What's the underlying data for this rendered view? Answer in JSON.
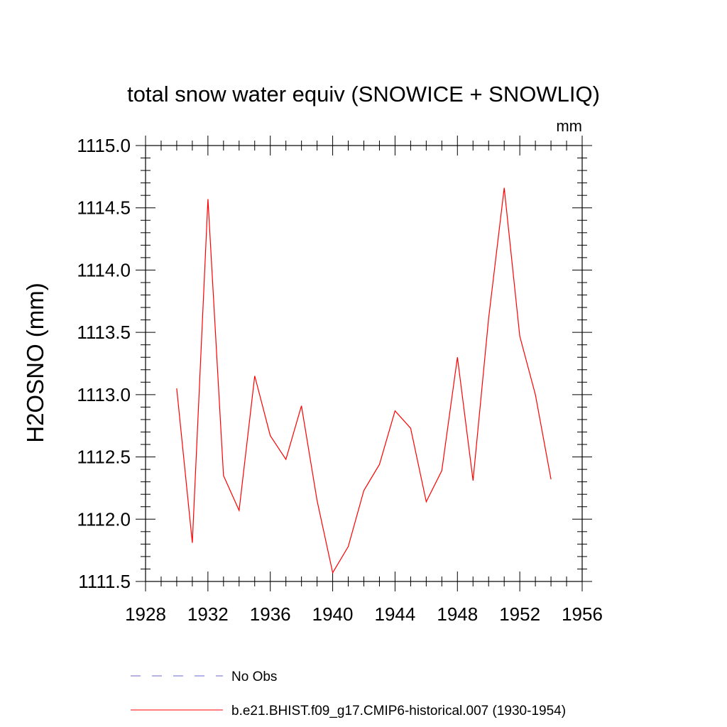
{
  "chart_data": {
    "type": "line",
    "title": "total snow water equiv (SNOWICE + SNOWLIQ)",
    "units": "mm",
    "ylabel": "H2OSNO  (mm)",
    "xlabel": "",
    "xlim": [
      1928,
      1956
    ],
    "ylim": [
      1111.5,
      1115.0
    ],
    "xticks": [
      1928,
      1932,
      1936,
      1940,
      1944,
      1948,
      1952,
      1956
    ],
    "yticks": [
      "1111.5",
      "1112.0",
      "1112.5",
      "1113.0",
      "1113.5",
      "1114.0",
      "1114.5",
      "1115.0"
    ],
    "grid": false,
    "legend_position": "bottom",
    "series": [
      {
        "name": "b.e21.BHIST.f09_g17.CMIP6-historical.007 (1930-1954)",
        "color": "#ff0000",
        "style": "solid",
        "x": [
          1930,
          1931,
          1932,
          1933,
          1934,
          1935,
          1936,
          1937,
          1938,
          1939,
          1940,
          1941,
          1942,
          1943,
          1944,
          1945,
          1946,
          1947,
          1948,
          1949,
          1950,
          1951,
          1952,
          1953,
          1954
        ],
        "values": [
          1113.05,
          1111.81,
          1114.57,
          1112.35,
          1112.07,
          1113.15,
          1112.67,
          1112.48,
          1112.91,
          1112.15,
          1111.57,
          1111.78,
          1112.23,
          1112.44,
          1112.87,
          1112.73,
          1112.14,
          1112.39,
          1113.3,
          1112.31,
          1113.61,
          1114.66,
          1113.47,
          1113.0,
          1112.32
        ]
      },
      {
        "name": "No Obs",
        "color": "#6a6ad0",
        "style": "dashed",
        "x": [],
        "values": []
      }
    ],
    "legend": [
      {
        "label": "No Obs",
        "color": "#6a6ad0",
        "style": "dashed"
      },
      {
        "label": "b.e21.BHIST.f09_g17.CMIP6-historical.007 (1930-1954)",
        "color": "#ff0000",
        "style": "solid"
      }
    ]
  }
}
